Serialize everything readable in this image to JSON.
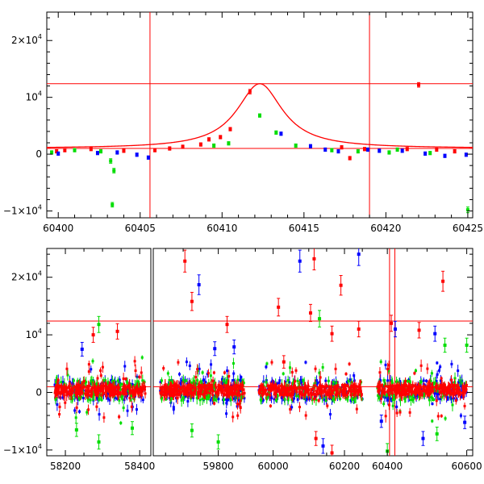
{
  "chart_data": [
    {
      "type": "scatter",
      "title": "",
      "xlabel": "",
      "ylabel": "",
      "xlim": [
        60399.3,
        60425.3
      ],
      "ylim": [
        -11200,
        25000
      ],
      "x_ticks": [
        {
          "value": 60400,
          "label": "60400"
        },
        {
          "value": 60405,
          "label": "60405"
        },
        {
          "value": 60410,
          "label": "60410"
        },
        {
          "value": 60415,
          "label": "60415"
        },
        {
          "value": 60420,
          "label": "60420"
        },
        {
          "value": 60425,
          "label": "60425"
        }
      ],
      "y_ticks": [
        {
          "value": -10000,
          "mantissa": "−1×10",
          "exp": "4"
        },
        {
          "value": 0,
          "mantissa": "0",
          "exp": ""
        },
        {
          "value": 10000,
          "mantissa": "10",
          "exp": "4"
        },
        {
          "value": 20000,
          "mantissa": "2×10",
          "exp": "4"
        }
      ],
      "hlines": [
        1000,
        12400
      ],
      "vlines": [
        60405.6,
        60419.0
      ],
      "model_curve": {
        "name": "",
        "color": "#ff0000",
        "baseline": 1000,
        "peak": 12400,
        "t0": 60412.3,
        "tE": 1.7
      },
      "series": [
        {
          "name": "",
          "color": "#ff0000",
          "points": [
            {
              "x": 60399.9,
              "y": 500,
              "err": 300
            },
            {
              "x": 60400.4,
              "y": 700,
              "err": 300
            },
            {
              "x": 60402.0,
              "y": 900,
              "err": 300
            },
            {
              "x": 60404.0,
              "y": 600,
              "err": 300
            },
            {
              "x": 60405.9,
              "y": 700,
              "err": 300
            },
            {
              "x": 60406.8,
              "y": 1000,
              "err": 300
            },
            {
              "x": 60407.6,
              "y": 1300,
              "err": 300
            },
            {
              "x": 60408.7,
              "y": 1700,
              "err": 300
            },
            {
              "x": 60409.2,
              "y": 2600,
              "err": 300
            },
            {
              "x": 60409.9,
              "y": 3000,
              "err": 300
            },
            {
              "x": 60410.5,
              "y": 4400,
              "err": 300
            },
            {
              "x": 60411.7,
              "y": 11000,
              "err": 400
            },
            {
              "x": 60417.3,
              "y": 1200,
              "err": 300
            },
            {
              "x": 60417.8,
              "y": -700,
              "err": 300
            },
            {
              "x": 60418.7,
              "y": 900,
              "err": 300
            },
            {
              "x": 60421.3,
              "y": 900,
              "err": 300
            },
            {
              "x": 60422.0,
              "y": 12200,
              "err": 400
            },
            {
              "x": 60423.1,
              "y": 800,
              "err": 300
            },
            {
              "x": 60424.2,
              "y": 500,
              "err": 300
            }
          ]
        },
        {
          "name": "",
          "color": "#00dd00",
          "points": [
            {
              "x": 60399.6,
              "y": 300,
              "err": 300
            },
            {
              "x": 60401.0,
              "y": 700,
              "err": 300
            },
            {
              "x": 60402.6,
              "y": 500,
              "err": 300
            },
            {
              "x": 60403.2,
              "y": -1200,
              "err": 400
            },
            {
              "x": 60403.4,
              "y": -2900,
              "err": 400
            },
            {
              "x": 60403.3,
              "y": -8900,
              "err": 400
            },
            {
              "x": 60409.5,
              "y": 1500,
              "err": 300
            },
            {
              "x": 60410.4,
              "y": 1900,
              "err": 300
            },
            {
              "x": 60412.3,
              "y": 6800,
              "err": 300
            },
            {
              "x": 60413.3,
              "y": 3800,
              "err": 300
            },
            {
              "x": 60414.5,
              "y": 1500,
              "err": 300
            },
            {
              "x": 60416.7,
              "y": 700,
              "err": 300
            },
            {
              "x": 60418.3,
              "y": 500,
              "err": 300
            },
            {
              "x": 60420.2,
              "y": 300,
              "err": 300
            },
            {
              "x": 60420.7,
              "y": 800,
              "err": 300
            },
            {
              "x": 60422.7,
              "y": 200,
              "err": 300
            },
            {
              "x": 60425.0,
              "y": -9800,
              "err": 500
            }
          ]
        },
        {
          "name": "",
          "color": "#0000ff",
          "points": [
            {
              "x": 60400.0,
              "y": 100,
              "err": 300
            },
            {
              "x": 60402.4,
              "y": 200,
              "err": 300
            },
            {
              "x": 60403.6,
              "y": 300,
              "err": 300
            },
            {
              "x": 60404.8,
              "y": -100,
              "err": 300
            },
            {
              "x": 60405.5,
              "y": -600,
              "err": 300
            },
            {
              "x": 60413.6,
              "y": 3600,
              "err": 300
            },
            {
              "x": 60415.4,
              "y": 1400,
              "err": 300
            },
            {
              "x": 60416.3,
              "y": 800,
              "err": 300
            },
            {
              "x": 60417.1,
              "y": 500,
              "err": 300
            },
            {
              "x": 60418.9,
              "y": 800,
              "err": 300
            },
            {
              "x": 60419.6,
              "y": 600,
              "err": 300
            },
            {
              "x": 60421.0,
              "y": 600,
              "err": 300
            },
            {
              "x": 60422.4,
              "y": 100,
              "err": 300
            },
            {
              "x": 60423.6,
              "y": -300,
              "err": 300
            },
            {
              "x": 60424.9,
              "y": -100,
              "err": 300
            }
          ]
        }
      ]
    },
    {
      "type": "scatter",
      "title": "",
      "xlabel": "",
      "ylabel": "",
      "segments": [
        {
          "xlim": [
            58150,
            58430
          ]
        },
        {
          "xlim": [
            59615,
            59895
          ]
        },
        {
          "xlim": [
            59940,
            60270
          ]
        },
        {
          "xlim": [
            60355,
            60615
          ]
        }
      ],
      "ylim": [
        -11000,
        25000
      ],
      "x_ticks": [
        {
          "value": 58200,
          "label": "58200"
        },
        {
          "value": 58400,
          "label": "58400"
        },
        {
          "value": 59800,
          "label": "59800"
        },
        {
          "value": 60000,
          "label": "60000"
        },
        {
          "value": 60200,
          "label": "60200"
        },
        {
          "value": 60400,
          "label": "60400"
        },
        {
          "value": 60600,
          "label": "60600"
        }
      ],
      "y_ticks": [
        {
          "value": -10000,
          "mantissa": "−1×10",
          "exp": "4"
        },
        {
          "value": 0,
          "mantissa": "0",
          "exp": ""
        },
        {
          "value": 10000,
          "mantissa": "10",
          "exp": "4"
        },
        {
          "value": 20000,
          "mantissa": "2×10",
          "exp": "4"
        }
      ],
      "hlines": [
        1000,
        12400
      ],
      "vlines": [
        60405.6,
        60419.0
      ],
      "season_ranges": [
        [
          58170,
          58415
        ],
        [
          59635,
          59875
        ],
        [
          59960,
          60250
        ],
        [
          60375,
          60600
        ]
      ],
      "bulk_level": [
        -500,
        1500
      ],
      "outliers": [
        {
          "x": 58275,
          "y": 10000,
          "color": "#ff0000"
        },
        {
          "x": 58290,
          "y": 11800,
          "color": "#00dd00"
        },
        {
          "x": 58340,
          "y": 10600,
          "color": "#ff0000"
        },
        {
          "x": 58245,
          "y": 7500,
          "color": "#0000ff"
        },
        {
          "x": 58230,
          "y": -6500,
          "color": "#00dd00"
        },
        {
          "x": 58290,
          "y": -8600,
          "color": "#00dd00"
        },
        {
          "x": 58380,
          "y": -6200,
          "color": "#00dd00"
        },
        {
          "x": 59705,
          "y": 22800,
          "color": "#ff0000"
        },
        {
          "x": 59745,
          "y": 18700,
          "color": "#0000ff"
        },
        {
          "x": 59725,
          "y": 15800,
          "color": "#ff0000"
        },
        {
          "x": 59790,
          "y": 7600,
          "color": "#0000ff"
        },
        {
          "x": 59825,
          "y": 11800,
          "color": "#ff0000"
        },
        {
          "x": 59725,
          "y": -6600,
          "color": "#00dd00"
        },
        {
          "x": 59800,
          "y": -8600,
          "color": "#00dd00"
        },
        {
          "x": 59845,
          "y": 7900,
          "color": "#0000ff"
        },
        {
          "x": 60075,
          "y": 22800,
          "color": "#0000ff"
        },
        {
          "x": 60115,
          "y": 23200,
          "color": "#ff0000"
        },
        {
          "x": 60015,
          "y": 14800,
          "color": "#ff0000"
        },
        {
          "x": 60190,
          "y": 18600,
          "color": "#ff0000"
        },
        {
          "x": 60105,
          "y": 13800,
          "color": "#ff0000"
        },
        {
          "x": 60130,
          "y": 12800,
          "color": "#00dd00"
        },
        {
          "x": 60030,
          "y": 5300,
          "color": "#ff0000"
        },
        {
          "x": 60165,
          "y": 10200,
          "color": "#ff0000"
        },
        {
          "x": 60240,
          "y": 11000,
          "color": "#ff0000"
        },
        {
          "x": 60240,
          "y": 24000,
          "color": "#0000ff"
        },
        {
          "x": 60120,
          "y": -8000,
          "color": "#ff0000"
        },
        {
          "x": 60140,
          "y": -9300,
          "color": "#0000ff"
        },
        {
          "x": 60165,
          "y": -10500,
          "color": "#ff0000"
        },
        {
          "x": 60410,
          "y": 12000,
          "color": "#ff0000"
        },
        {
          "x": 60420,
          "y": 11000,
          "color": "#0000ff"
        },
        {
          "x": 60540,
          "y": 19300,
          "color": "#ff0000"
        },
        {
          "x": 60480,
          "y": 10800,
          "color": "#ff0000"
        },
        {
          "x": 60520,
          "y": 10200,
          "color": "#0000ff"
        },
        {
          "x": 60545,
          "y": 8200,
          "color": "#00dd00"
        },
        {
          "x": 60600,
          "y": 8200,
          "color": "#00dd00"
        },
        {
          "x": 60385,
          "y": -5000,
          "color": "#0000ff"
        },
        {
          "x": 60400,
          "y": -10200,
          "color": "#00dd00"
        },
        {
          "x": 60490,
          "y": -8000,
          "color": "#0000ff"
        },
        {
          "x": 60525,
          "y": -7200,
          "color": "#00dd00"
        },
        {
          "x": 60595,
          "y": -5200,
          "color": "#0000ff"
        }
      ]
    }
  ]
}
